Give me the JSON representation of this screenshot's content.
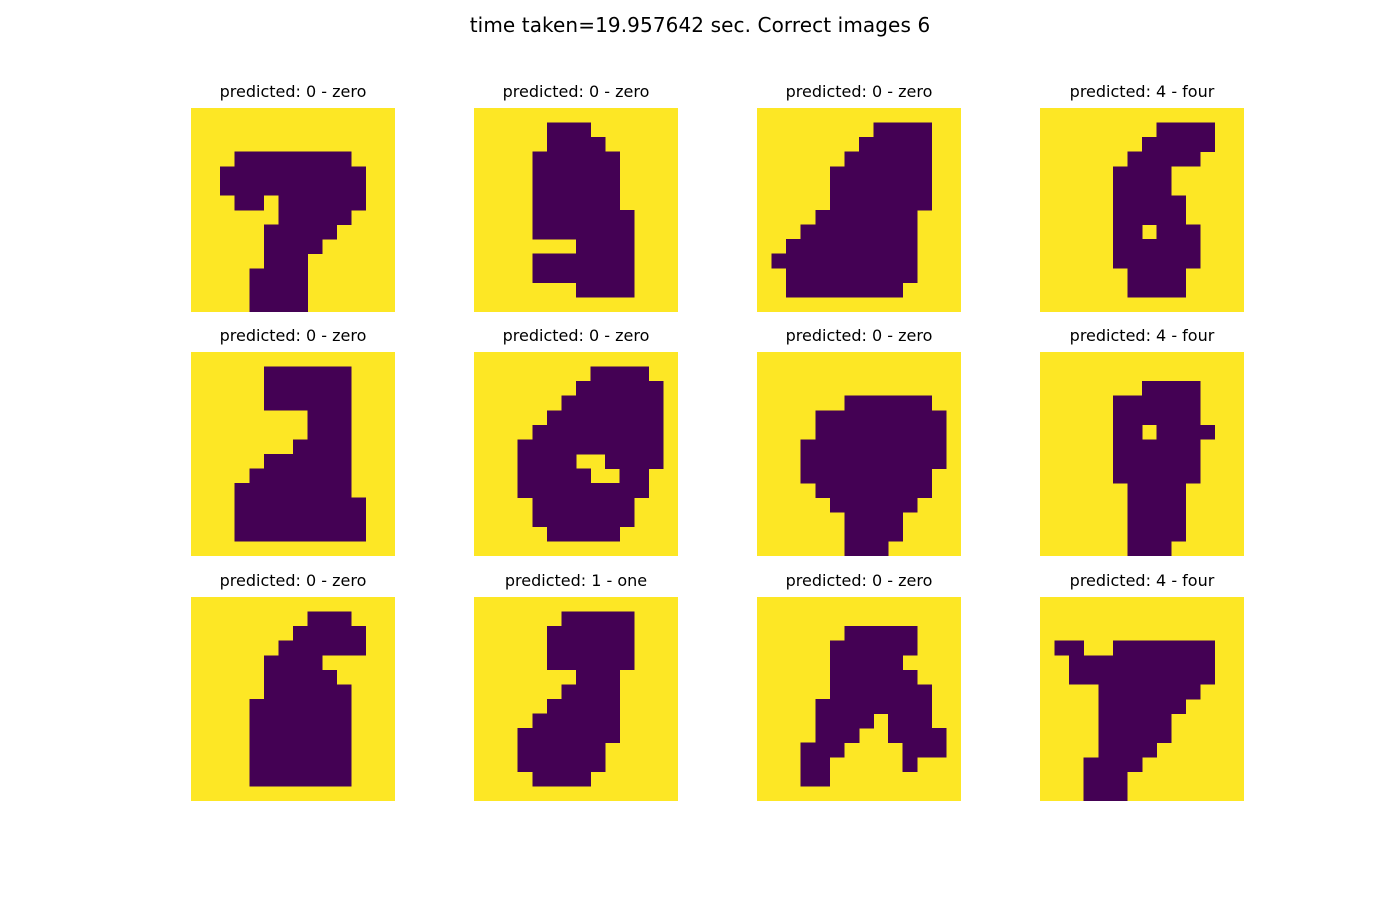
{
  "figure": {
    "title": "time taken=19.957642 sec. Correct images 6"
  },
  "colors": {
    "on": "#440154",
    "off": "#fde725"
  },
  "chart_data": {
    "type": "heatmap",
    "grid": false,
    "image_shape": [
      14,
      14
    ],
    "images": [
      {
        "title": "predicted: 0 - zero",
        "rows": [
          "00000000000000",
          "00000000000000",
          "00000000000000",
          "00011111111000",
          "00111111111100",
          "00111111111100",
          "00011011111100",
          "00000011111000",
          "00000111110000",
          "00000111100000",
          "00000111000000",
          "00001111000000",
          "00001111000000",
          "00001111000000"
        ]
      },
      {
        "title": "predicted: 0 - zero",
        "rows": [
          "00000000000000",
          "00000111000000",
          "00000111100000",
          "00001111110000",
          "00001111110000",
          "00001111110000",
          "00001111110000",
          "00001111111000",
          "00001111111000",
          "00000001111000",
          "00001111111000",
          "00001111111000",
          "00000001111000",
          "00000000000000"
        ]
      },
      {
        "title": "predicted: 0 - zero",
        "rows": [
          "00000000000000",
          "00000000111100",
          "00000001111100",
          "00000011111100",
          "00000111111100",
          "00000111111100",
          "00000111111100",
          "00001111111000",
          "00011111111000",
          "00111111111000",
          "01111111111000",
          "00111111111000",
          "00111111110000",
          "00000000000000"
        ]
      },
      {
        "title": "predicted: 4 - four",
        "rows": [
          "00000000000000",
          "00000000111100",
          "00000001111100",
          "00000011111000",
          "00000111100000",
          "00000111100000",
          "00000111110000",
          "00000111110000",
          "00000110111000",
          "00000111111000",
          "00000111111000",
          "00000011110000",
          "00000011110000",
          "00000000000000"
        ]
      },
      {
        "title": "predicted: 0 - zero",
        "rows": [
          "00000000000000",
          "00000111111000",
          "00000111111000",
          "00000111111000",
          "00000000111000",
          "00000000111000",
          "00000001111000",
          "00000111111000",
          "00001111111000",
          "00011111111000",
          "00011111111100",
          "00011111111100",
          "00011111111100",
          "00000000000000"
        ]
      },
      {
        "title": "predicted: 0 - zero",
        "rows": [
          "00000000000000",
          "00000000111100",
          "00000001111110",
          "00000011111110",
          "00000111111110",
          "00001111111110",
          "00011111111110",
          "00011110011110",
          "00011111001100",
          "00011111111100",
          "00001111111000",
          "00001111111000",
          "00000111110000",
          "00000000000000"
        ]
      },
      {
        "title": "predicted: 0 - zero",
        "rows": [
          "00000000000000",
          "00000000000000",
          "00000000000000",
          "00000011111100",
          "00001111111110",
          "00001111111110",
          "00011111111110",
          "00011111111110",
          "00011111111100",
          "00001111111100",
          "00000111111000",
          "00000011110000",
          "00000011110000",
          "00000011100000"
        ]
      },
      {
        "title": "predicted: 4 - four",
        "rows": [
          "00000000000000",
          "00000000000000",
          "00000001111000",
          "00000111111000",
          "00000111111000",
          "00000110111100",
          "00000111111000",
          "00000111111000",
          "00000111111000",
          "00000011110000",
          "00000011110000",
          "00000011110000",
          "00000011110000",
          "00000011100000"
        ]
      },
      {
        "title": "predicted: 0 - zero",
        "rows": [
          "00000000000000",
          "00000000111000",
          "00000001111100",
          "00000011111100",
          "00000111100000",
          "00000111110000",
          "00000111111000",
          "00001111111000",
          "00001111111000",
          "00001111111000",
          "00001111111000",
          "00001111111000",
          "00001111111000",
          "00000000000000"
        ]
      },
      {
        "title": "predicted: 1 - one",
        "rows": [
          "00000000000000",
          "00000011111000",
          "00000111111000",
          "00000111111000",
          "00000111111000",
          "00000001110000",
          "00000011110000",
          "00000111110000",
          "00001111110000",
          "00011111110000",
          "00011111100000",
          "00011111100000",
          "00001111000000",
          "00000000000000"
        ]
      },
      {
        "title": "predicted: 0 - zero",
        "rows": [
          "00000000000000",
          "00000000000000",
          "00000011111000",
          "00000111111000",
          "00000111110000",
          "00000111111000",
          "00000111111100",
          "00001111111100",
          "00001111011100",
          "00001110011110",
          "00011100001110",
          "00011000001000",
          "00011000000000",
          "00000000000000"
        ]
      },
      {
        "title": "predicted: 4 - four",
        "rows": [
          "00000000000000",
          "00000000000000",
          "00000000000000",
          "01100111111100",
          "00111111111100",
          "00111111111100",
          "00001111111000",
          "00001111110000",
          "00001111100000",
          "00001111100000",
          "00001111000000",
          "00011110000000",
          "00011100000000",
          "00011100000000"
        ]
      }
    ]
  }
}
